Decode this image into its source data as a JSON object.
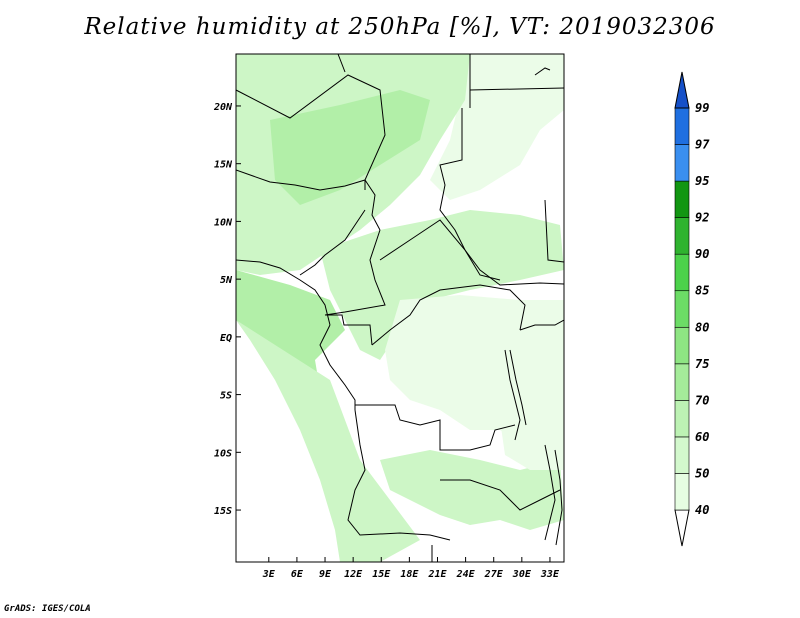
{
  "title": "Relative humidity at 250hPa [%], VT: 2019032306",
  "credit": "GrADS: IGES/COLA",
  "map": {
    "lon_range": [
      -0.5,
      34.5
    ],
    "lat_range": [
      -19.5,
      24.5
    ],
    "lon_ticks": [
      "3E",
      "6E",
      "9E",
      "12E",
      "15E",
      "18E",
      "21E",
      "24E",
      "27E",
      "30E",
      "33E"
    ],
    "lat_ticks": [
      "20N",
      "15N",
      "10N",
      "5N",
      "EQ",
      "5S",
      "10S",
      "15S"
    ]
  },
  "colorbar": {
    "levels": [
      "40",
      "50",
      "60",
      "70",
      "75",
      "80",
      "85",
      "90",
      "92",
      "95",
      "97",
      "99"
    ],
    "colors": [
      "#e6fde2",
      "#d3f8cd",
      "#bdf2b4",
      "#a5ec9a",
      "#8ee583",
      "#6cdc66",
      "#4cd24b",
      "#2fb32f",
      "#129612",
      "#3a8ff0",
      "#1f6fe0",
      "#1550c8"
    ]
  },
  "shading_colors": {
    "light": "#ebfce8",
    "medium": "#cdf6c6",
    "strong": "#b2efa8"
  }
}
